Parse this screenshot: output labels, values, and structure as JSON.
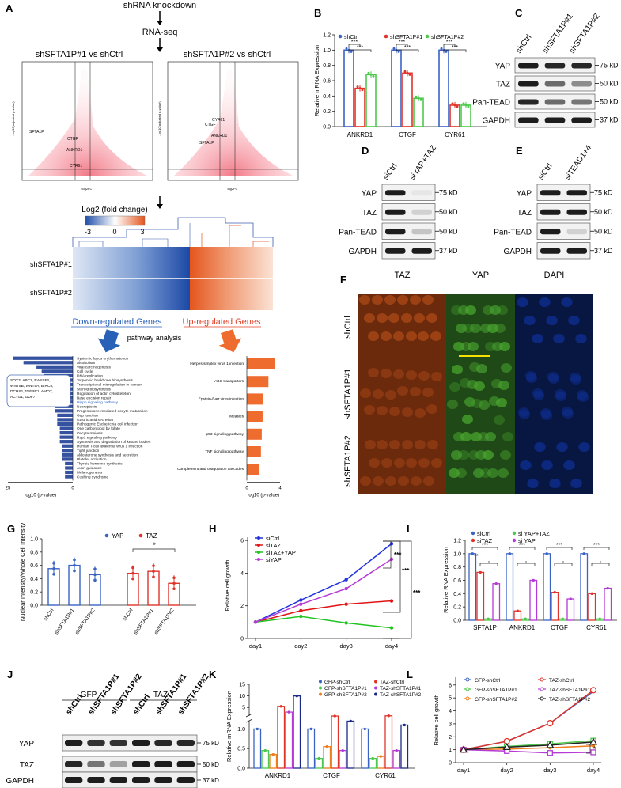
{
  "panels": [
    "A",
    "B",
    "C",
    "D",
    "E",
    "F",
    "G",
    "H",
    "I",
    "J",
    "K",
    "L"
  ],
  "panel_a": {
    "flow": [
      "shRNA knockdown",
      "RNA-seq"
    ],
    "volcano_left_title": "shSFTA1P#1 vs shCtrl",
    "volcano_right_title": "shSFTA1P#2 vs shCtrl",
    "volcano_x": "log2FC",
    "volcano_y": "-log10(adjusted p-value)",
    "left_labels": [
      "SFTA1P",
      "CTGF",
      "ANKRD1",
      "CYR61"
    ],
    "right_labels": [
      "CYR61",
      "CTGF",
      "ANKRD1",
      "SFTA1P"
    ],
    "heat_title": "Log2 (fold change)",
    "heat_ticks": [
      "-3",
      "0",
      "3"
    ],
    "heat_rows": [
      "shSFTA1P#1",
      "shSFTA1P#2"
    ],
    "down": "Down-regulated Genes",
    "up": "Up-regulated Genes",
    "pathway": "pathway analysis",
    "down_pathways": [
      "Systemic lupus erythematosus",
      "Alcoholism",
      "Viral carcinogenesis",
      "Cell cycle",
      "DNA replication",
      "Terpenoid backbone biosynthesis",
      "Transcriptional misregulation in cancer",
      "Steroid biosynthesis",
      "Regulation of actin cytoskeleton",
      "Base excision repair",
      "Hippo signaling pathway",
      "Necroptosis",
      "Progesterone-mediated oocyte maturation",
      "Gap junction",
      "Gastric acid secretion",
      "Pathogenic Escherichia coli infection",
      "One carbon pool by folate",
      "Oocyte meiosis",
      "Rap1 signaling pathway",
      "Synthesis and degradation of ketone bodies",
      "Human T-cell leukemia virus 1 infection",
      "Tight junction",
      "Aldosterone synthesis and secretion",
      "Platelet activation",
      "Thyroid hormone synthesis",
      "Axon guidance",
      "Melanogenesis",
      "Cushing syndrome"
    ],
    "down_values": [
      23,
      19,
      14,
      12,
      11,
      10,
      10,
      9,
      9,
      8,
      8,
      7,
      7,
      6,
      6,
      6,
      5,
      5,
      5,
      5,
      4,
      4,
      4,
      4,
      3,
      3,
      3,
      3
    ],
    "down_axis": [
      "25",
      "0"
    ],
    "gene_box": "SOX2, APC2, RASSF2, WNT5B, WNT5A, BIRC5, DCHS1,TGFBR1, AMOT, ACTG1, GDF7",
    "up_pathways": [
      "Herpes simplex virus 1 infection",
      "ABC transporters",
      "Epstein-Barr virus infection",
      "Measles",
      "p53 signaling pathway",
      "TNF signaling pathway",
      "Complement and coagulation cascades"
    ],
    "up_values": [
      3.4,
      2.6,
      2.0,
      1.9,
      1.8,
      1.7,
      1.5
    ],
    "up_axis": [
      "0",
      "4"
    ],
    "axis_label": "log10 (p-value)"
  },
  "panel_b": {
    "ylabel": "Relative mRNA Expression",
    "legend": [
      "shCtrl",
      "shSFTA1P#1",
      "shSFTA1P#2"
    ],
    "yticks": [
      "0.0",
      "0.2",
      "0.4",
      "0.6",
      "0.8",
      "1.0",
      "1.2"
    ],
    "genes": [
      "ANKRD1",
      "CTGF",
      "CYR61"
    ],
    "sig": "***"
  },
  "blots": {
    "c": {
      "lanes": [
        "shCtrl",
        "shSFTA1P#1",
        "shSFTA1P#2"
      ],
      "rows": [
        "YAP",
        "TAZ",
        "Pan-TEAD",
        "GAPDH"
      ],
      "kd": [
        "75 kD",
        "50 kD",
        "50 kD",
        "37 kD"
      ]
    },
    "d": {
      "lanes": [
        "siCtrl",
        "siYAP+TAZ"
      ],
      "rows": [
        "YAP",
        "TAZ",
        "Pan-TEAD",
        "GAPDH"
      ],
      "kd": [
        "75 kD",
        "50 kD",
        "50 kD",
        "37 kD"
      ]
    },
    "e": {
      "lanes": [
        "siCtrl",
        "siTEAD1+4"
      ],
      "rows": [
        "YAP",
        "TAZ",
        "Pan-TEAD",
        "GAPDH"
      ],
      "kd": [
        "75 kD",
        "50 kD",
        "50 kD",
        "37 kD"
      ]
    }
  },
  "panel_f": {
    "cols": [
      "TAZ",
      "YAP",
      "DAPI"
    ],
    "rows": [
      "shCtrl",
      "shSFTA1P#1",
      "shSFTA1P#2"
    ]
  },
  "panel_g": {
    "ylabel": "Nuclear Intensity/Whole Cell Intensity",
    "legend": [
      "YAP",
      "TAZ"
    ],
    "yticks": [
      "0.0",
      "0.2",
      "0.4",
      "0.6",
      "0.8",
      "1.0"
    ],
    "groups": [
      "shCtrl",
      "shSFTA1P#1",
      "shSFTA1P#2",
      "shCtrl",
      "shSFTA1P#1",
      "shSFTA1P#2"
    ],
    "sig": "*"
  },
  "panel_h": {
    "ylabel": "Relative cell growth",
    "legend": [
      "siCtrl",
      "siTAZ",
      "siTAZ+YAP",
      "siYAP"
    ],
    "xticks": [
      "day1",
      "day2",
      "day3",
      "day4"
    ],
    "yticks": [
      "0",
      "2",
      "4",
      "6"
    ],
    "sig": "***"
  },
  "panel_i": {
    "ylabel": "Relative RNA Expression",
    "legend": [
      "siCtrl",
      "siTAZ",
      "si YAP+TAZ",
      "si YAP"
    ],
    "genes": [
      "SFTA1P",
      "ANKRD1",
      "CTGF",
      "CYR61"
    ],
    "yticks": [
      "0.0",
      "0.2",
      "0.4",
      "0.6",
      "0.8",
      "1.0",
      "1.2"
    ],
    "sig": "***",
    "sig2": "**"
  },
  "panel_j": {
    "groups": [
      "GFP",
      "TAZ"
    ],
    "lanes": [
      "shCtrl",
      "shSFTA1P#1",
      "shSFTA1P#2",
      "shCtrl",
      "shSFTA1P#1",
      "shSFTA1P#2"
    ],
    "rows": [
      "YAP",
      "TAZ",
      "GAPDH"
    ],
    "kd": [
      "75 kD",
      "50 kD",
      "37 kD"
    ]
  },
  "panel_k": {
    "ylabel": "Relative mRNA Expression",
    "legend": [
      "GFP-shCtrl",
      "GFP-shSFTA1P#1",
      "GFP-shSFTA1P#2",
      "TAZ-shCtrl",
      "TAZ-shSFTA1P#1",
      "TAZ-shSFTA1P#2"
    ],
    "genes": [
      "ANKRD1",
      "CTGF",
      "CYR61"
    ],
    "yticks": [
      "0.0",
      "0.5",
      "1.0",
      "5",
      "10",
      "15"
    ]
  },
  "panel_l": {
    "ylabel": "Relative cell growth",
    "legend": [
      "GFP-shCtrl",
      "GFP-shSFTA1P#1",
      "GFP-shSFTA1P#2",
      "TAZ-shCtrl",
      "TAZ-shSFTA1P#1",
      "TAZ-shSFTA1P#2"
    ],
    "xticks": [
      "day1",
      "day2",
      "day3",
      "day4"
    ],
    "yticks": [
      "0",
      "1",
      "2",
      "3",
      "4",
      "5",
      "6"
    ],
    "sig": "*"
  },
  "chart_data": [
    {
      "type": "bar",
      "panel": "B",
      "categories": [
        "ANKRD1",
        "CTGF",
        "CYR61"
      ],
      "series": [
        {
          "name": "shCtrl",
          "values": [
            1.0,
            1.0,
            1.0
          ]
        },
        {
          "name": "shSFTA1P#1",
          "values": [
            0.5,
            0.7,
            0.28
          ]
        },
        {
          "name": "shSFTA1P#2",
          "values": [
            0.68,
            0.37,
            0.28
          ]
        }
      ],
      "ylabel": "Relative mRNA Expression",
      "ylim": [
        0,
        1.2
      ]
    },
    {
      "type": "bar",
      "panel": "G",
      "categories": [
        "shCtrl",
        "shSFTA1P#1",
        "shSFTA1P#2"
      ],
      "series": [
        {
          "name": "YAP",
          "values": [
            0.55,
            0.6,
            0.46
          ]
        },
        {
          "name": "TAZ",
          "values": [
            0.48,
            0.51,
            0.33
          ]
        }
      ],
      "ylabel": "Nuclear Intensity/Whole Cell Intensity",
      "ylim": [
        0,
        1.0
      ]
    },
    {
      "type": "line",
      "panel": "H",
      "x": [
        "day1",
        "day2",
        "day3",
        "day4"
      ],
      "series": [
        {
          "name": "siCtrl",
          "values": [
            1.0,
            2.35,
            3.6,
            5.8
          ]
        },
        {
          "name": "siTAZ",
          "values": [
            1.0,
            1.7,
            2.1,
            2.3
          ]
        },
        {
          "name": "siTAZ+YAP",
          "values": [
            1.0,
            1.35,
            0.95,
            0.65
          ]
        },
        {
          "name": "siYAP",
          "values": [
            1.0,
            2.1,
            3.05,
            4.85
          ]
        }
      ],
      "ylabel": "Relative cell growth",
      "ylim": [
        0,
        6
      ]
    },
    {
      "type": "bar",
      "panel": "I",
      "categories": [
        "SFTA1P",
        "ANKRD1",
        "CTGF",
        "CYR61"
      ],
      "series": [
        {
          "name": "siCtrl",
          "values": [
            1.0,
            1.0,
            1.0,
            1.0
          ]
        },
        {
          "name": "siTAZ",
          "values": [
            0.72,
            0.14,
            0.42,
            0.4
          ]
        },
        {
          "name": "si YAP+TAZ",
          "values": [
            0.02,
            0.02,
            0.02,
            0.02
          ]
        },
        {
          "name": "si YAP",
          "values": [
            0.55,
            0.6,
            0.32,
            0.48
          ]
        }
      ],
      "ylabel": "Relative RNA Expression",
      "ylim": [
        0,
        1.2
      ]
    },
    {
      "type": "bar",
      "panel": "K",
      "categories": [
        "ANKRD1",
        "CTGF",
        "CYR61"
      ],
      "series": [
        {
          "name": "GFP-shCtrl",
          "values": [
            1.0,
            1.0,
            1.0
          ]
        },
        {
          "name": "GFP-shSFTA1P#1",
          "values": [
            0.45,
            0.25,
            0.25
          ]
        },
        {
          "name": "GFP-shSFTA1P#2",
          "values": [
            0.35,
            0.55,
            0.3
          ]
        },
        {
          "name": "TAZ-shCtrl",
          "values": [
            5.5,
            1.3,
            1.4
          ]
        },
        {
          "name": "TAZ-shSFTA1P#1",
          "values": [
            3.0,
            0.45,
            0.45
          ]
        },
        {
          "name": "TAZ-shSFTA1P#2",
          "values": [
            10.0,
            1.2,
            1.1
          ]
        }
      ],
      "ylabel": "Relative mRNA Expression"
    },
    {
      "type": "line",
      "panel": "L",
      "x": [
        "day1",
        "day2",
        "day3",
        "day4"
      ],
      "series": [
        {
          "name": "GFP-shCtrl",
          "values": [
            1.0,
            1.65,
            3.05,
            5.5
          ]
        },
        {
          "name": "GFP-shSFTA1P#1",
          "values": [
            1.0,
            1.25,
            1.45,
            1.7
          ]
        },
        {
          "name": "GFP-shSFTA1P#2",
          "values": [
            1.0,
            1.05,
            1.15,
            1.3
          ]
        },
        {
          "name": "TAZ-shCtrl",
          "values": [
            1.0,
            1.65,
            3.05,
            5.6
          ]
        },
        {
          "name": "TAZ-shSFTA1P#1",
          "values": [
            1.0,
            0.9,
            0.75,
            0.8
          ]
        },
        {
          "name": "TAZ-shSFTA1P#2",
          "values": [
            1.0,
            1.2,
            1.35,
            1.6
          ]
        }
      ],
      "ylabel": "Relative cell growth",
      "ylim": [
        0,
        6
      ]
    }
  ]
}
